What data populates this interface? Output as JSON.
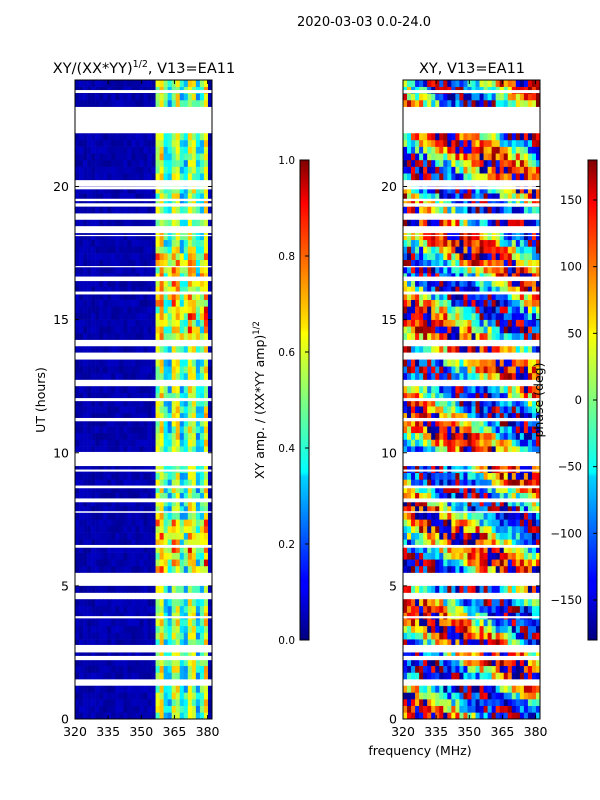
{
  "figure_title": "2020-03-03 0.0-24.0",
  "shared_xlabel": "frequency (MHz)",
  "colors": {
    "white": "#ffffff",
    "black": "#000000"
  },
  "chart_data": [
    {
      "type": "heatmap",
      "title_prefix": "XY/(XX*YY)",
      "title_superscript": "1/2",
      "title_suffix": ", V13=EA11",
      "xlabel": "",
      "ylabel": "UT (hours)",
      "xlim": [
        320,
        382
      ],
      "ylim": [
        0,
        24
      ],
      "xticks": [
        320,
        335,
        350,
        365,
        380
      ],
      "yticks": [
        0,
        5,
        10,
        15,
        20
      ],
      "colorbar": {
        "label_prefix": "XY amp. / (XX*YY amp)",
        "label_superscript": "1/2",
        "range": [
          0.0,
          1.0
        ],
        "ticks": [
          "0.0",
          "0.2",
          "0.4",
          "0.6",
          "0.8",
          "1.0"
        ],
        "tick_values": [
          0.0,
          0.2,
          0.4,
          0.6,
          0.8,
          1.0
        ]
      },
      "description": "Normalized XY amplitude vs frequency and UT; near zero below ~357 MHz, elevated 0.3-0.9 between ~357-380 MHz"
    },
    {
      "type": "heatmap",
      "title": "XY, V13=EA11",
      "xlabel": "",
      "ylabel": "",
      "xlim": [
        320,
        382
      ],
      "ylim": [
        0,
        24
      ],
      "xticks": [
        320,
        335,
        350,
        365,
        380
      ],
      "yticks": [
        0,
        5,
        10,
        15,
        20
      ],
      "colorbar": {
        "label": "phase (deg)",
        "range": [
          -180,
          180
        ],
        "ticks": [
          "−150",
          "−100",
          "−50",
          "0",
          "50",
          "100",
          "150"
        ],
        "tick_values": [
          -150,
          -100,
          -50,
          0,
          50,
          100,
          150
        ]
      },
      "description": "XY phase vs frequency and UT; varies across full -180 to 180 deg range"
    }
  ]
}
